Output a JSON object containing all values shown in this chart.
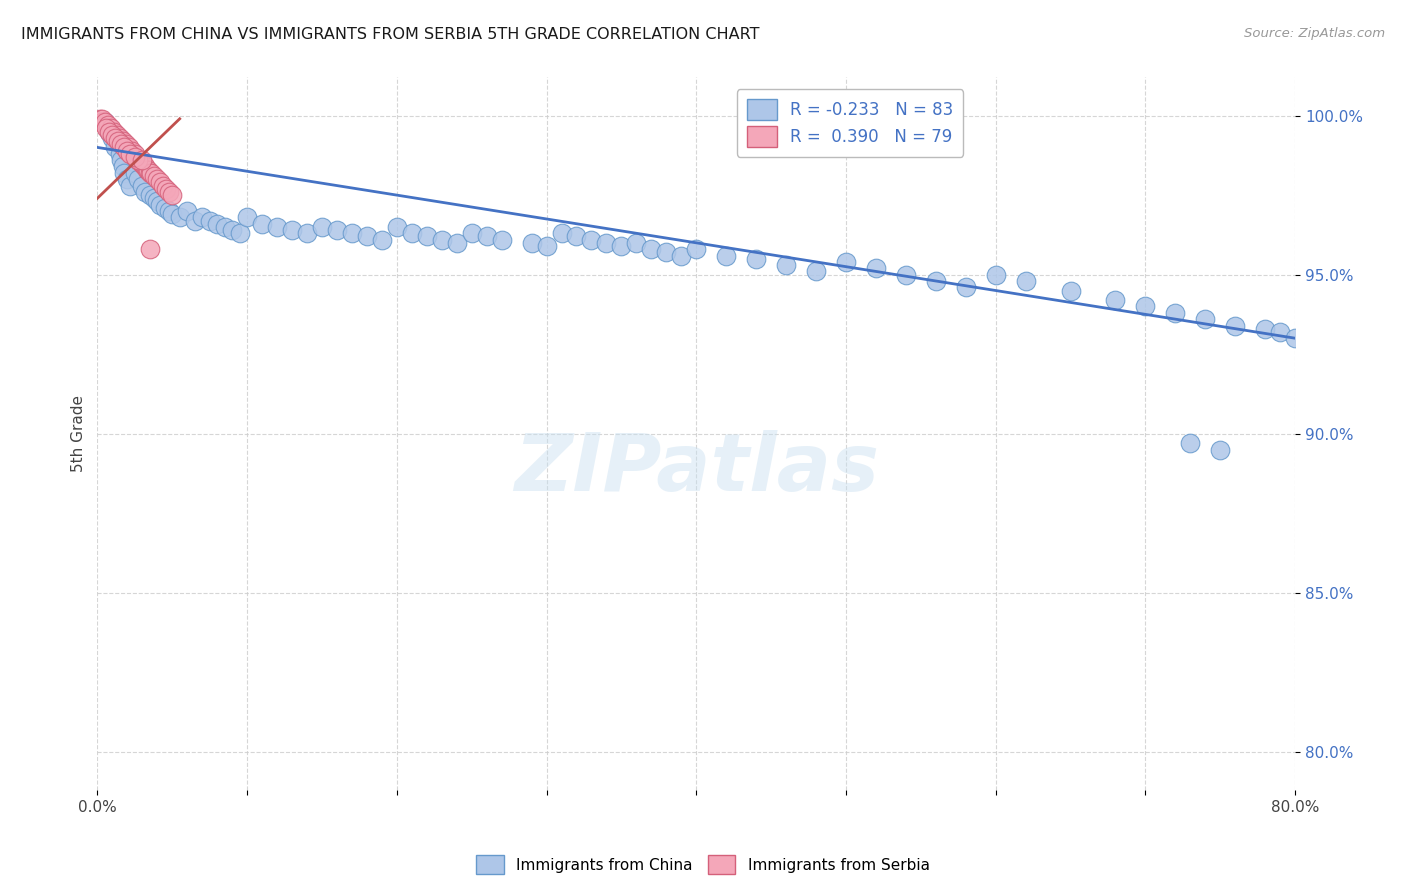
{
  "title": "IMMIGRANTS FROM CHINA VS IMMIGRANTS FROM SERBIA 5TH GRADE CORRELATION CHART",
  "source": "Source: ZipAtlas.com",
  "ylabel": "5th Grade",
  "blue_color": "#aec6e8",
  "blue_edge": "#6699cc",
  "pink_color": "#f4a7b9",
  "pink_edge": "#d4607a",
  "line_blue": "#4472c4",
  "line_pink": "#c0504d",
  "R_blue": -0.233,
  "N_blue": 83,
  "R_pink": 0.39,
  "N_pink": 79,
  "legend_label_blue": "Immigrants from China",
  "legend_label_pink": "Immigrants from Serbia",
  "watermark": "ZIPatlas",
  "xlim": [
    0.0,
    0.8
  ],
  "ylim": [
    0.788,
    1.012
  ],
  "ytick_values": [
    0.8,
    0.85,
    0.9,
    0.95,
    1.0
  ],
  "blue_x": [
    0.005,
    0.008,
    0.01,
    0.012,
    0.014,
    0.015,
    0.016,
    0.017,
    0.018,
    0.02,
    0.022,
    0.025,
    0.027,
    0.03,
    0.032,
    0.035,
    0.038,
    0.04,
    0.042,
    0.045,
    0.048,
    0.05,
    0.055,
    0.06,
    0.065,
    0.07,
    0.075,
    0.08,
    0.085,
    0.09,
    0.095,
    0.1,
    0.11,
    0.12,
    0.13,
    0.14,
    0.15,
    0.16,
    0.17,
    0.18,
    0.19,
    0.2,
    0.21,
    0.22,
    0.23,
    0.24,
    0.25,
    0.26,
    0.27,
    0.29,
    0.3,
    0.31,
    0.32,
    0.33,
    0.34,
    0.35,
    0.36,
    0.37,
    0.38,
    0.39,
    0.4,
    0.42,
    0.44,
    0.46,
    0.48,
    0.5,
    0.52,
    0.54,
    0.56,
    0.58,
    0.6,
    0.62,
    0.65,
    0.68,
    0.7,
    0.72,
    0.74,
    0.76,
    0.78,
    0.79,
    0.8,
    0.73,
    0.75
  ],
  "blue_y": [
    0.998,
    0.995,
    0.993,
    0.99,
    0.992,
    0.988,
    0.986,
    0.984,
    0.982,
    0.98,
    0.978,
    0.982,
    0.98,
    0.978,
    0.976,
    0.975,
    0.974,
    0.973,
    0.972,
    0.971,
    0.97,
    0.969,
    0.968,
    0.97,
    0.967,
    0.968,
    0.967,
    0.966,
    0.965,
    0.964,
    0.963,
    0.968,
    0.966,
    0.965,
    0.964,
    0.963,
    0.965,
    0.964,
    0.963,
    0.962,
    0.961,
    0.965,
    0.963,
    0.962,
    0.961,
    0.96,
    0.963,
    0.962,
    0.961,
    0.96,
    0.959,
    0.963,
    0.962,
    0.961,
    0.96,
    0.959,
    0.96,
    0.958,
    0.957,
    0.956,
    0.958,
    0.956,
    0.955,
    0.953,
    0.951,
    0.954,
    0.952,
    0.95,
    0.948,
    0.946,
    0.95,
    0.948,
    0.945,
    0.942,
    0.94,
    0.938,
    0.936,
    0.934,
    0.933,
    0.932,
    0.93,
    0.897,
    0.895
  ],
  "pink_x": [
    0.002,
    0.003,
    0.004,
    0.005,
    0.006,
    0.007,
    0.008,
    0.009,
    0.01,
    0.011,
    0.012,
    0.013,
    0.014,
    0.015,
    0.016,
    0.017,
    0.018,
    0.019,
    0.02,
    0.021,
    0.022,
    0.023,
    0.024,
    0.025,
    0.026,
    0.027,
    0.028,
    0.029,
    0.03,
    0.031,
    0.032,
    0.033,
    0.034,
    0.035,
    0.036,
    0.038,
    0.04,
    0.042,
    0.044,
    0.046,
    0.048,
    0.05,
    0.003,
    0.005,
    0.007,
    0.009,
    0.011,
    0.013,
    0.015,
    0.017,
    0.019,
    0.021,
    0.023,
    0.025,
    0.027,
    0.003,
    0.005,
    0.007,
    0.009,
    0.011,
    0.013,
    0.015,
    0.017,
    0.019,
    0.021,
    0.023,
    0.025,
    0.006,
    0.008,
    0.01,
    0.012,
    0.014,
    0.016,
    0.018,
    0.02,
    0.022,
    0.025,
    0.03,
    0.035
  ],
  "pink_y": [
    0.999,
    0.998,
    0.998,
    0.997,
    0.997,
    0.996,
    0.996,
    0.995,
    0.995,
    0.994,
    0.994,
    0.993,
    0.993,
    0.992,
    0.992,
    0.991,
    0.991,
    0.99,
    0.99,
    0.989,
    0.989,
    0.988,
    0.988,
    0.987,
    0.987,
    0.986,
    0.986,
    0.985,
    0.985,
    0.984,
    0.984,
    0.983,
    0.983,
    0.982,
    0.982,
    0.981,
    0.98,
    0.979,
    0.978,
    0.977,
    0.976,
    0.975,
    0.998,
    0.997,
    0.996,
    0.995,
    0.994,
    0.993,
    0.992,
    0.991,
    0.99,
    0.989,
    0.988,
    0.987,
    0.986,
    0.999,
    0.998,
    0.997,
    0.996,
    0.995,
    0.994,
    0.993,
    0.992,
    0.991,
    0.99,
    0.989,
    0.988,
    0.996,
    0.995,
    0.994,
    0.993,
    0.992,
    0.991,
    0.99,
    0.989,
    0.988,
    0.987,
    0.986,
    0.958
  ],
  "blue_line_x": [
    0.0,
    0.8
  ],
  "blue_line_y": [
    0.99,
    0.93
  ],
  "pink_line_x": [
    0.0,
    0.055
  ],
  "pink_line_y": [
    0.974,
    0.999
  ]
}
